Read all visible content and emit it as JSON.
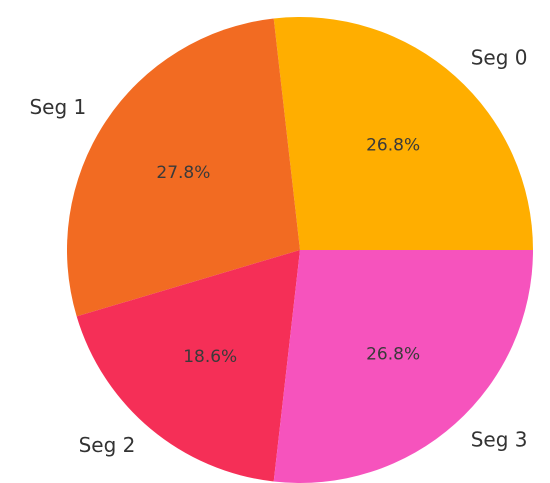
{
  "chart_data": {
    "type": "pie",
    "title": "",
    "slices": [
      {
        "label": "Seg 0",
        "value": 26.8,
        "pct_label": "26.8%",
        "color": "#FFAE00"
      },
      {
        "label": "Seg 1",
        "value": 27.8,
        "pct_label": "27.8%",
        "color": "#F26B22"
      },
      {
        "label": "Seg 2",
        "value": 18.6,
        "pct_label": "18.6%",
        "color": "#F52F57"
      },
      {
        "label": "Seg 3",
        "value": 26.8,
        "pct_label": "26.8%",
        "color": "#F653BD"
      }
    ],
    "start_angle_deg": 0,
    "direction": "counterclockwise",
    "legend": "none"
  }
}
